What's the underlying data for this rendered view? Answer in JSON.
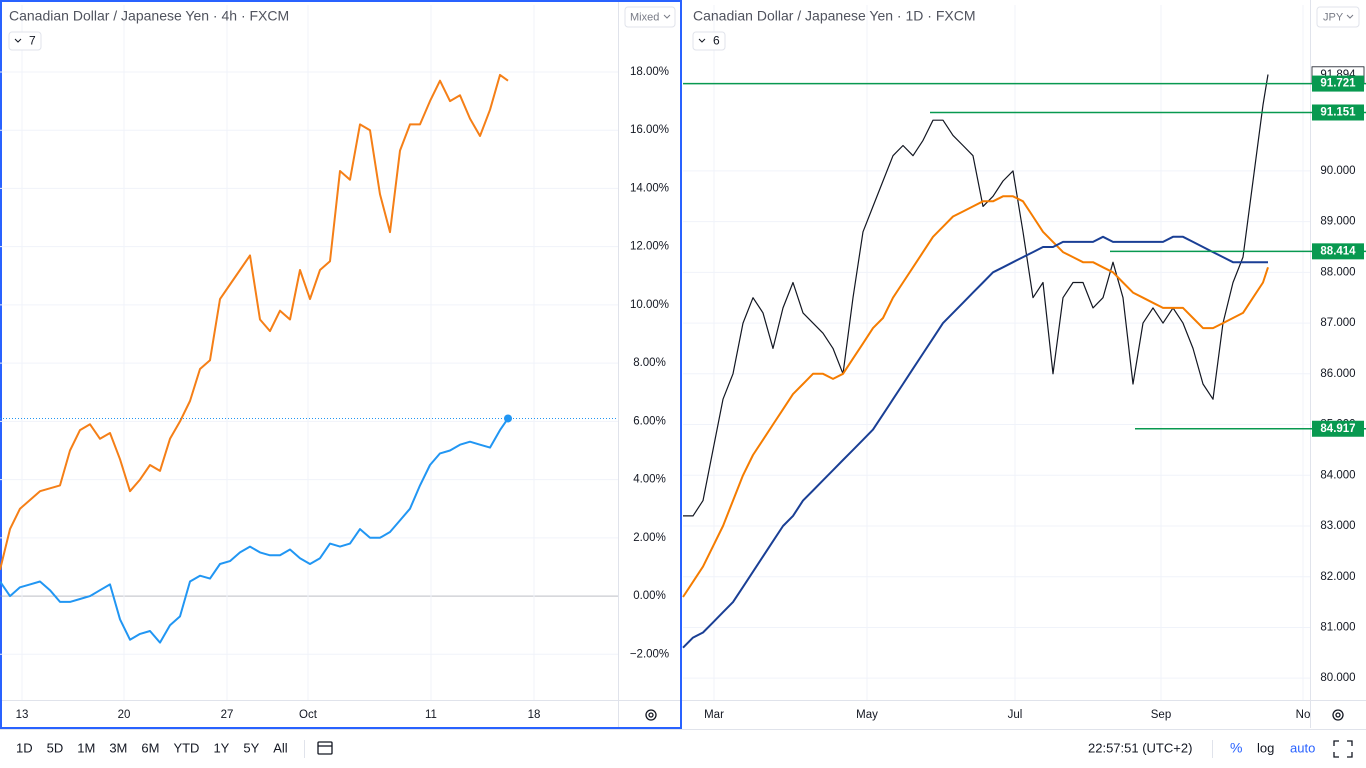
{
  "chart_data": [
    {
      "type": "line",
      "title": "Canadian Dollar / Japanese Yen · 4h · FXCM",
      "indicators": "7",
      "scale_mode": "Mixed",
      "x": [
        0,
        1,
        2,
        3,
        4,
        5,
        6,
        7,
        8,
        9,
        10,
        11,
        12,
        13,
        14,
        15,
        16,
        17,
        18,
        19,
        20,
        21,
        22,
        23,
        24,
        25,
        26,
        27,
        28,
        29,
        30,
        31,
        32,
        33,
        34,
        35,
        36,
        37,
        38,
        39,
        40,
        41,
        42,
        43,
        44,
        45,
        46,
        47,
        48,
        49,
        50,
        50.8
      ],
      "xlim": [
        0,
        61.8
      ],
      "xticks": [
        {
          "value": 2.2,
          "label": "13"
        },
        {
          "value": 12.4,
          "label": "20"
        },
        {
          "value": 22.7,
          "label": "27"
        },
        {
          "value": 30.8,
          "label": "Oct"
        },
        {
          "value": 43.1,
          "label": "11"
        },
        {
          "value": 53.4,
          "label": "18"
        }
      ],
      "ylim": [
        -3.57,
        20.3
      ],
      "yticks": [
        {
          "value": -2,
          "label": "−2.00%"
        },
        {
          "value": 0,
          "label": "0.00%"
        },
        {
          "value": 2,
          "label": "2.00%"
        },
        {
          "value": 4,
          "label": "4.00%"
        },
        {
          "value": 6,
          "label": "6.00%"
        },
        {
          "value": 8,
          "label": "8.00%"
        },
        {
          "value": 10,
          "label": "10.00%"
        },
        {
          "value": 12,
          "label": "12.00%"
        },
        {
          "value": 14,
          "label": "14.00%"
        },
        {
          "value": 16,
          "label": "16.00%"
        },
        {
          "value": 18,
          "label": "18.00%"
        }
      ],
      "grid": true,
      "last_point_marker": true,
      "series": [
        {
          "color": "#f57f17",
          "values": [
            0.9,
            2.3,
            3.0,
            3.3,
            3.6,
            3.7,
            3.8,
            5.0,
            5.7,
            5.9,
            5.4,
            5.6,
            4.7,
            3.6,
            4.0,
            4.5,
            4.3,
            5.4,
            6.0,
            6.7,
            7.8,
            8.1,
            10.2,
            10.7,
            11.2,
            11.7,
            9.5,
            9.1,
            9.8,
            9.5,
            11.2,
            10.2,
            11.2,
            11.5,
            14.6,
            14.3,
            16.2,
            16.0,
            13.8,
            12.5,
            15.3,
            16.2,
            16.2,
            17.0,
            17.7,
            17.0,
            17.2,
            16.4,
            15.8,
            16.7,
            17.9,
            17.7
          ]
        },
        {
          "color": "#2196f3",
          "values": [
            0.5,
            0.0,
            0.3,
            0.4,
            0.5,
            0.2,
            -0.2,
            -0.2,
            -0.1,
            0.0,
            0.2,
            0.4,
            -0.8,
            -1.5,
            -1.3,
            -1.2,
            -1.6,
            -1.0,
            -0.7,
            0.5,
            0.7,
            0.6,
            1.1,
            1.2,
            1.5,
            1.7,
            1.5,
            1.4,
            1.4,
            1.6,
            1.3,
            1.1,
            1.3,
            1.8,
            1.7,
            1.8,
            2.3,
            2.0,
            2.0,
            2.2,
            2.6,
            3.0,
            3.8,
            4.5,
            4.9,
            5.0,
            5.2,
            5.3,
            5.2,
            5.1,
            5.7,
            6.1
          ]
        }
      ]
    },
    {
      "type": "line",
      "title": "Canadian Dollar / Japanese Yen · 1D · FXCM",
      "indicators": "6",
      "scale_mode": "JPY",
      "x": [
        0,
        1,
        2,
        3,
        4,
        5,
        6,
        7,
        8,
        9,
        10,
        11,
        12,
        13,
        14,
        15,
        16,
        17,
        18,
        19,
        20,
        21,
        22,
        23,
        24,
        25,
        26,
        27,
        28,
        29,
        30,
        31,
        32,
        33,
        34,
        35,
        36,
        37,
        38,
        39,
        40,
        41,
        42,
        43,
        44,
        45,
        46,
        47,
        48,
        49,
        50,
        51,
        52,
        53,
        54,
        55,
        56,
        57,
        58,
        58.5
      ],
      "xlim": [
        0,
        62.7
      ],
      "xticks": [
        {
          "value": 3.1,
          "label": "Mar"
        },
        {
          "value": 18.4,
          "label": "May"
        },
        {
          "value": 33.2,
          "label": "Jul"
        },
        {
          "value": 47.8,
          "label": "Sep"
        },
        {
          "value": 62.0,
          "label": "No"
        }
      ],
      "ylim": [
        79.57,
        93.27
      ],
      "yticks": [
        {
          "value": 80,
          "label": "80.000"
        },
        {
          "value": 81,
          "label": "81.000"
        },
        {
          "value": 82,
          "label": "82.000"
        },
        {
          "value": 83,
          "label": "83.000"
        },
        {
          "value": 84,
          "label": "84.000"
        },
        {
          "value": 85,
          "label": "85.000"
        },
        {
          "value": 86,
          "label": "86.000"
        },
        {
          "value": 87,
          "label": "87.000"
        },
        {
          "value": 88,
          "label": "88.000"
        },
        {
          "value": 89,
          "label": "89.000"
        },
        {
          "value": 90,
          "label": "90.000"
        }
      ],
      "grid": true,
      "levels": [
        91.721,
        91.151,
        88.414,
        84.917
      ],
      "level_color": "#089950",
      "last_price": 91.894,
      "series": [
        {
          "color": "#131722",
          "values": [
            83.2,
            83.2,
            83.5,
            84.5,
            85.5,
            86.0,
            87.0,
            87.5,
            87.2,
            86.5,
            87.3,
            87.8,
            87.2,
            87.0,
            86.8,
            86.5,
            86.0,
            87.5,
            88.8,
            89.3,
            89.8,
            90.3,
            90.5,
            90.3,
            90.6,
            91.0,
            91.0,
            90.7,
            90.5,
            90.3,
            89.3,
            89.5,
            89.8,
            90.0,
            88.8,
            87.5,
            87.8,
            86.0,
            87.5,
            87.8,
            87.8,
            87.3,
            87.5,
            88.2,
            87.5,
            85.8,
            87.0,
            87.3,
            87.0,
            87.3,
            87.0,
            86.5,
            85.8,
            85.5,
            87.0,
            87.8,
            88.3,
            89.8,
            91.3,
            91.9
          ]
        },
        {
          "color": "#f57c00",
          "values": [
            81.6,
            81.9,
            82.2,
            82.6,
            83.0,
            83.5,
            84.0,
            84.4,
            84.7,
            85.0,
            85.3,
            85.6,
            85.8,
            86.0,
            86.0,
            85.9,
            86.0,
            86.3,
            86.6,
            86.9,
            87.1,
            87.5,
            87.8,
            88.1,
            88.4,
            88.7,
            88.9,
            89.1,
            89.2,
            89.3,
            89.4,
            89.4,
            89.5,
            89.5,
            89.4,
            89.1,
            88.8,
            88.6,
            88.4,
            88.3,
            88.2,
            88.2,
            88.1,
            88.0,
            87.8,
            87.6,
            87.5,
            87.4,
            87.3,
            87.3,
            87.3,
            87.1,
            86.9,
            86.9,
            87.0,
            87.1,
            87.2,
            87.5,
            87.8,
            88.1
          ]
        },
        {
          "color": "#1a3f95",
          "values": [
            80.6,
            80.8,
            80.9,
            81.1,
            81.3,
            81.5,
            81.8,
            82.1,
            82.4,
            82.7,
            83.0,
            83.2,
            83.5,
            83.7,
            83.9,
            84.1,
            84.3,
            84.5,
            84.7,
            84.9,
            85.2,
            85.5,
            85.8,
            86.1,
            86.4,
            86.7,
            87.0,
            87.2,
            87.4,
            87.6,
            87.8,
            88.0,
            88.1,
            88.2,
            88.3,
            88.4,
            88.5,
            88.5,
            88.6,
            88.6,
            88.6,
            88.6,
            88.7,
            88.6,
            88.6,
            88.6,
            88.6,
            88.6,
            88.6,
            88.7,
            88.7,
            88.6,
            88.5,
            88.4,
            88.3,
            88.2,
            88.2,
            88.2,
            88.2,
            88.2
          ]
        }
      ]
    }
  ],
  "toolbar": {
    "ranges": [
      "1D",
      "5D",
      "1M",
      "3M",
      "6M",
      "YTD",
      "1Y",
      "5Y",
      "All"
    ],
    "clock": "22:57:51 (UTC+2)",
    "percent": "%",
    "log": "log",
    "auto": "auto"
  }
}
